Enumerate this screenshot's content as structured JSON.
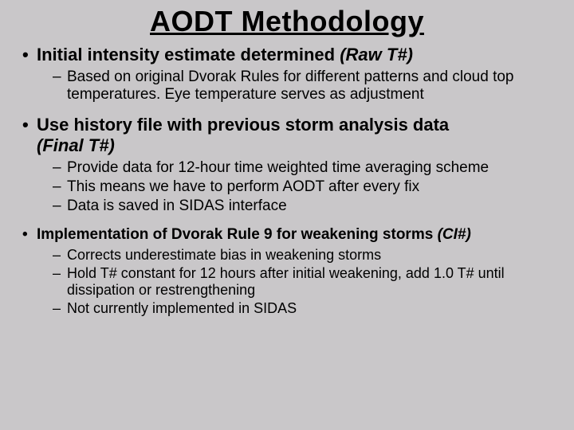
{
  "title": {
    "text": "AODT Methodology",
    "fontsize": 36,
    "color": "#000000"
  },
  "background_color": "#c9c7c9",
  "text_color": "#000000",
  "bullets": [
    {
      "label": "Initial intensity estimate determined ",
      "suffix": "(Raw T#)",
      "label_fontsize": 22,
      "sub_fontsize": 19,
      "sub": [
        "Based on original Dvorak Rules for different patterns and cloud top temperatures.  Eye temperature serves as adjustment"
      ]
    },
    {
      "label": "Use history file with previous storm analysis data ",
      "suffix": "(Final T#)",
      "label_fontsize": 22,
      "sub_fontsize": 19,
      "sub": [
        "Provide data for 12-hour time weighted time averaging scheme",
        "This means we have to perform AODT after every fix",
        "Data is saved in SIDAS interface"
      ]
    },
    {
      "label": "Implementation of Dvorak Rule 9 for weakening storms ",
      "suffix": "(CI#)",
      "label_fontsize": 19,
      "sub_fontsize": 18,
      "sub": [
        "Corrects underestimate bias in weakening storms",
        "Hold T# constant for 12 hours after initial weakening, add 1.0 T# until dissipation or restrengthening",
        "Not currently implemented in SIDAS"
      ]
    }
  ]
}
